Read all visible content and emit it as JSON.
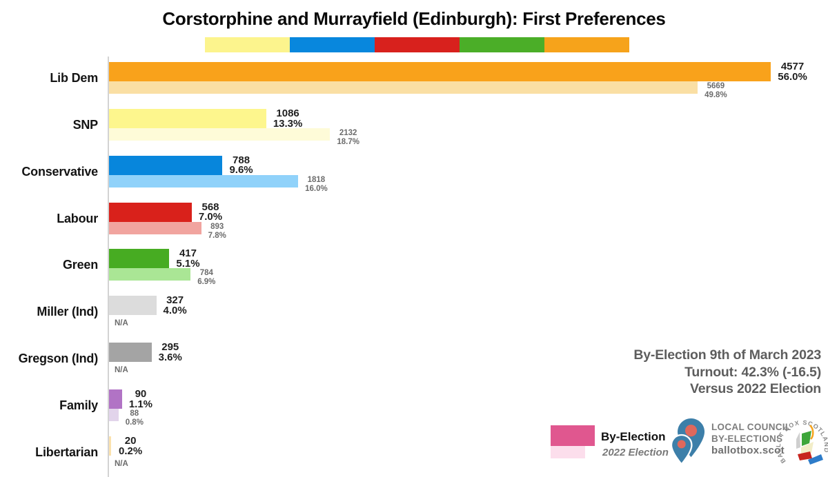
{
  "title": "Corstorphine and Murrayfield (Edinburgh): First Preferences",
  "top_strip_colors": [
    "#FCF48D",
    "#0887DD",
    "#D8211D",
    "#4BAE28",
    "#F6A31B"
  ],
  "chart_data": {
    "type": "bar",
    "orientation": "horizontal",
    "title": "Corstorphine and Murrayfield (Edinburgh): First Preferences",
    "categories": [
      "Lib Dem",
      "SNP",
      "Conservative",
      "Labour",
      "Green",
      "Miller (Ind)",
      "Gregson (Ind)",
      "Family",
      "Libertarian"
    ],
    "series": [
      {
        "name": "By-Election",
        "values": [
          4577,
          1086,
          788,
          568,
          417,
          327,
          295,
          90,
          20
        ],
        "pct": [
          56.0,
          13.3,
          9.6,
          7.0,
          5.1,
          4.0,
          3.6,
          1.1,
          0.2
        ],
        "colors": [
          "#F9A21B",
          "#FDF68D",
          "#0786DC",
          "#D9211B",
          "#47AC22",
          "#DCDCDC",
          "#A4A4A4",
          "#B173C5",
          "#FBE2AE"
        ]
      },
      {
        "name": "2022 Election",
        "values": [
          5669,
          2132,
          1818,
          893,
          784,
          null,
          null,
          88,
          null
        ],
        "pct": [
          49.8,
          18.7,
          16.0,
          7.8,
          6.9,
          null,
          null,
          0.8,
          null
        ],
        "colors": [
          "#FADFA4",
          "#FEFBD8",
          "#90D2FA",
          "#F1A49F",
          "#AAE695",
          null,
          null,
          "#E2D4EB",
          null
        ]
      }
    ],
    "na_label": "N/A",
    "xlim": [
      0,
      60
    ],
    "grid": false,
    "legend_position": "bottom-right"
  },
  "annotation": {
    "line1": "By-Election 9th of March 2023",
    "line2": "Turnout: 42.3% (-16.5)",
    "line3": "Versus 2022 Election"
  },
  "legend": {
    "primary_label": "By-Election",
    "secondary_label": "2022 Election",
    "primary_color": "#E0578F",
    "secondary_color": "#FCDEEC"
  },
  "branding": {
    "org_line1": "LOCAL COUNCIL",
    "org_line2": "BY-ELECTIONS",
    "org_line3": "ballotbox.scot",
    "badge_text": "BALLOT BOX SCOTLAND",
    "pin_color": "#3D7FA9",
    "pin_dot_color": "#E0685C"
  }
}
